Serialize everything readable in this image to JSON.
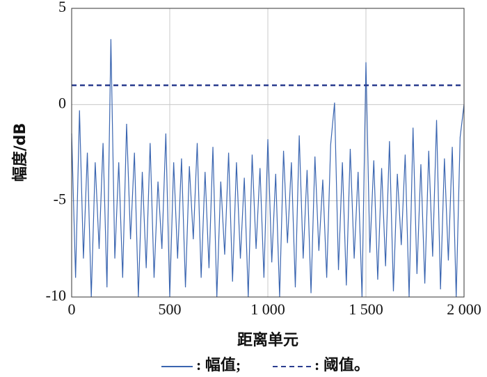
{
  "chart_data": {
    "type": "line",
    "ylabel": "幅度/dB",
    "xlabel": "距离单元",
    "xlim": [
      0,
      2000
    ],
    "ylim": [
      -10,
      5
    ],
    "xticks": [
      0,
      500,
      {
        "value": 1000,
        "label": "1 000"
      },
      {
        "value": 1500,
        "label": "1 500"
      },
      {
        "value": 2000,
        "label": "2 000"
      }
    ],
    "yticks": [
      -10,
      -5,
      0,
      5
    ],
    "grid": true,
    "series": [
      {
        "name": ": 幅值;",
        "color": "#3a65b0",
        "style": "solid",
        "x": [
          0,
          20,
          40,
          60,
          80,
          100,
          120,
          140,
          160,
          180,
          200,
          220,
          240,
          260,
          280,
          300,
          320,
          340,
          360,
          380,
          400,
          420,
          440,
          460,
          480,
          500,
          520,
          540,
          560,
          580,
          600,
          620,
          640,
          660,
          680,
          700,
          720,
          740,
          760,
          780,
          800,
          820,
          840,
          860,
          880,
          900,
          920,
          940,
          960,
          980,
          1000,
          1020,
          1040,
          1060,
          1080,
          1100,
          1120,
          1140,
          1160,
          1180,
          1200,
          1220,
          1240,
          1260,
          1280,
          1300,
          1320,
          1340,
          1360,
          1380,
          1400,
          1420,
          1440,
          1460,
          1480,
          1500,
          1520,
          1540,
          1560,
          1580,
          1600,
          1620,
          1640,
          1660,
          1680,
          1700,
          1720,
          1740,
          1760,
          1780,
          1800,
          1820,
          1840,
          1860,
          1880,
          1900,
          1920,
          1940,
          1960,
          1980,
          2000
        ],
        "values": [
          -1.5,
          -9,
          -0.3,
          -8,
          -2.5,
          -10,
          -3,
          -7.5,
          -2,
          -9.5,
          3.4,
          -8,
          -3,
          -9,
          -1,
          -7,
          -2.5,
          -10,
          -3.5,
          -8.5,
          -2,
          -9,
          -4,
          -7.5,
          -1.5,
          -10,
          -3,
          -8,
          -2.8,
          -9.5,
          -3.2,
          -7,
          -2,
          -9,
          -3.5,
          -8.5,
          -2.2,
          -10,
          -4,
          -7.8,
          -2.5,
          -9.2,
          -3,
          -8,
          -3.8,
          -10,
          -2.6,
          -7.5,
          -3.3,
          -9,
          -1.8,
          -8.2,
          -3.6,
          -10,
          -2.4,
          -7.2,
          -3,
          -9.5,
          -1.6,
          -8,
          -3.4,
          -9.8,
          -2.7,
          -7.6,
          -3.9,
          -9,
          -2.1,
          0.1,
          -8.6,
          -3,
          -9.4,
          -2.3,
          -8,
          -3.5,
          -10,
          2.2,
          -7.7,
          -2.9,
          -9.1,
          -3.3,
          -8.4,
          -1.9,
          -9.7,
          -3.6,
          -7.3,
          -2.6,
          -10,
          -1.2,
          -8.8,
          -3.1,
          -9.3,
          -2.4,
          -7.9,
          -0.8,
          -9.6,
          -2.8,
          -8.1,
          -2.2,
          -10,
          -1.7,
          0
        ]
      },
      {
        "name": ": 阈值。",
        "color": "#2b3d8f",
        "style": "dashed",
        "x": [
          0,
          2000
        ],
        "values": [
          1,
          1
        ]
      }
    ]
  }
}
